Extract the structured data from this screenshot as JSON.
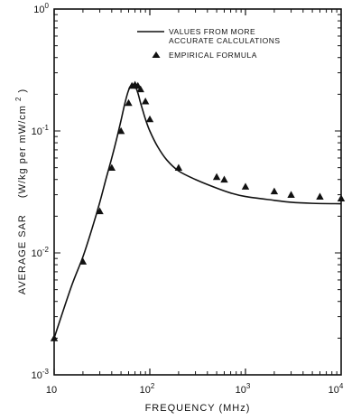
{
  "chart_data": {
    "type": "line",
    "xlabel": "FREQUENCY (MHz)",
    "ylabel_main": "AVERAGE SAR",
    "ylabel_unit": "(W/kg per mW/cm",
    "ylabel_unit_exp": "2",
    "ylabel_unit_close": ")",
    "x_scale": "log",
    "y_scale": "log",
    "xlim": [
      10,
      10000
    ],
    "ylim": [
      0.001,
      1
    ],
    "x_ticks": [
      {
        "base": "10",
        "exp": ""
      },
      {
        "base": "10",
        "exp": "2"
      },
      {
        "base": "10",
        "exp": "3"
      },
      {
        "base": "10",
        "exp": "4"
      }
    ],
    "y_ticks": [
      {
        "base": "10",
        "exp": "-3"
      },
      {
        "base": "10",
        "exp": "-2"
      },
      {
        "base": "10",
        "exp": "-1"
      },
      {
        "base": "10",
        "exp": "0"
      }
    ],
    "grid": false,
    "legend_position": "top-right",
    "series": [
      {
        "name": "VALUES FROM MORE ACCURATE CALCULATIONS",
        "style": "line",
        "x": [
          10,
          15,
          20,
          25,
          30,
          35,
          40,
          45,
          50,
          55,
          60,
          65,
          70,
          75,
          80,
          85,
          90,
          100,
          120,
          150,
          200,
          300,
          500,
          700,
          1000,
          2000,
          3000,
          5000,
          10000
        ],
        "y": [
          0.002,
          0.0052,
          0.0093,
          0.016,
          0.026,
          0.041,
          0.06,
          0.086,
          0.122,
          0.17,
          0.216,
          0.24,
          0.235,
          0.205,
          0.17,
          0.145,
          0.125,
          0.1,
          0.075,
          0.058,
          0.047,
          0.04,
          0.034,
          0.031,
          0.029,
          0.027,
          0.026,
          0.0255,
          0.0253
        ]
      },
      {
        "name": "EMPIRICAL FORMULA",
        "style": "marker",
        "x": [
          10,
          20,
          30,
          40,
          50,
          60,
          65,
          70,
          75,
          80,
          90,
          100,
          200,
          500,
          600,
          1000,
          2000,
          3000,
          6000,
          10000
        ],
        "y": [
          0.002,
          0.0085,
          0.022,
          0.05,
          0.1,
          0.17,
          0.235,
          0.24,
          0.235,
          0.22,
          0.175,
          0.125,
          0.05,
          0.042,
          0.04,
          0.035,
          0.032,
          0.03,
          0.029,
          0.028
        ]
      }
    ]
  }
}
